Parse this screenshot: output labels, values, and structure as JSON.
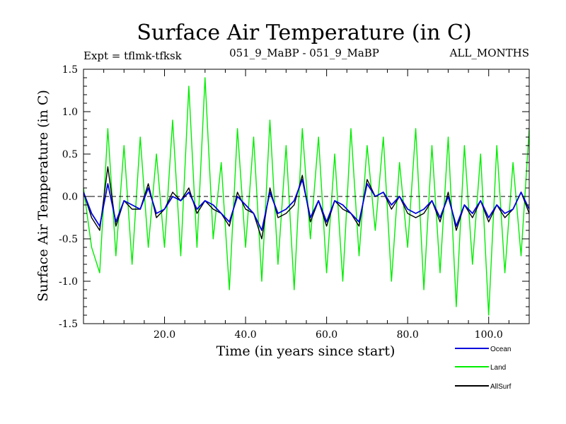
{
  "chart_data": {
    "type": "line",
    "title": "Surface Air Temperature (in C)",
    "subtitle_left": "Expt = tflmk-tfksk",
    "subtitle_center": "051_9_MaBP - 051_9_MaBP",
    "subtitle_right": "ALL_MONTHS",
    "xlabel": "Time (in years since start)",
    "ylabel": "Surface Air Temperature (in C)",
    "xlim": [
      0,
      110
    ],
    "ylim": [
      -1.5,
      1.5
    ],
    "x_ticks": [
      20,
      40,
      60,
      80,
      100
    ],
    "x_tick_labels": [
      "20.0",
      "40.0",
      "60.0",
      "80.0",
      "100.0"
    ],
    "y_ticks": [
      -1.5,
      -1.0,
      -0.5,
      0.0,
      0.5,
      1.0,
      1.5
    ],
    "y_tick_labels": [
      "-1.5",
      "-1.0",
      "-0.5",
      "0.0",
      "0.5",
      "1.0",
      "1.5"
    ],
    "reference_line": {
      "y": 0.0,
      "style": "dashed"
    },
    "series": [
      {
        "name": "Land",
        "color": "#00ee00",
        "x": [
          0,
          2,
          4,
          6,
          8,
          10,
          12,
          14,
          16,
          18,
          20,
          22,
          24,
          26,
          28,
          30,
          32,
          34,
          36,
          38,
          40,
          42,
          44,
          46,
          48,
          50,
          52,
          54,
          56,
          58,
          60,
          62,
          64,
          66,
          68,
          70,
          72,
          74,
          76,
          78,
          80,
          82,
          84,
          86,
          88,
          90,
          92,
          94,
          96,
          98,
          100,
          102,
          104,
          106,
          108,
          110
        ],
        "y": [
          0.1,
          -0.6,
          -0.9,
          0.8,
          -0.7,
          0.6,
          -0.8,
          0.7,
          -0.6,
          0.5,
          -0.6,
          0.9,
          -0.7,
          1.3,
          -0.6,
          1.4,
          -0.5,
          0.4,
          -1.1,
          0.8,
          -0.6,
          0.7,
          -1.0,
          0.9,
          -0.8,
          0.6,
          -1.1,
          0.8,
          -0.5,
          0.7,
          -0.9,
          0.5,
          -1.0,
          0.8,
          -0.7,
          0.6,
          -0.4,
          0.7,
          -1.0,
          0.4,
          -0.6,
          0.8,
          -1.1,
          0.6,
          -0.9,
          0.7,
          -1.3,
          0.6,
          -0.8,
          0.5,
          -1.4,
          0.6,
          -0.9,
          0.4,
          -0.7,
          0.8
        ]
      },
      {
        "name": "Ocean",
        "color": "#0000dd",
        "x": [
          0,
          2,
          4,
          6,
          8,
          10,
          12,
          14,
          16,
          18,
          20,
          22,
          24,
          26,
          28,
          30,
          32,
          34,
          36,
          38,
          40,
          42,
          44,
          46,
          48,
          50,
          52,
          54,
          56,
          58,
          60,
          62,
          64,
          66,
          68,
          70,
          72,
          74,
          76,
          78,
          80,
          82,
          84,
          86,
          88,
          90,
          92,
          94,
          96,
          98,
          100,
          102,
          104,
          106,
          108,
          110
        ],
        "y": [
          0.05,
          -0.2,
          -0.35,
          0.15,
          -0.3,
          -0.05,
          -0.1,
          -0.15,
          0.1,
          -0.2,
          -0.15,
          0.0,
          -0.05,
          0.05,
          -0.15,
          -0.05,
          -0.1,
          -0.2,
          -0.3,
          0.0,
          -0.1,
          -0.2,
          -0.4,
          0.05,
          -0.2,
          -0.15,
          -0.05,
          0.2,
          -0.25,
          -0.05,
          -0.3,
          -0.05,
          -0.1,
          -0.2,
          -0.3,
          0.15,
          0.0,
          0.05,
          -0.1,
          0.0,
          -0.15,
          -0.2,
          -0.15,
          -0.05,
          -0.25,
          0.0,
          -0.35,
          -0.1,
          -0.2,
          -0.05,
          -0.25,
          -0.1,
          -0.2,
          -0.15,
          0.05,
          -0.15
        ]
      },
      {
        "name": "AllSurf",
        "color": "#000000",
        "x": [
          0,
          2,
          4,
          6,
          8,
          10,
          12,
          14,
          16,
          18,
          20,
          22,
          24,
          26,
          28,
          30,
          32,
          34,
          36,
          38,
          40,
          42,
          44,
          46,
          48,
          50,
          52,
          54,
          56,
          58,
          60,
          62,
          64,
          66,
          68,
          70,
          72,
          74,
          76,
          78,
          80,
          82,
          84,
          86,
          88,
          90,
          92,
          94,
          96,
          98,
          100,
          102,
          104,
          106,
          108,
          110
        ],
        "y": [
          0.05,
          -0.25,
          -0.4,
          0.35,
          -0.35,
          -0.05,
          -0.15,
          -0.15,
          0.15,
          -0.25,
          -0.15,
          0.05,
          -0.05,
          0.1,
          -0.2,
          -0.05,
          -0.15,
          -0.2,
          -0.35,
          0.05,
          -0.15,
          -0.2,
          -0.5,
          0.1,
          -0.25,
          -0.2,
          -0.1,
          0.25,
          -0.3,
          -0.05,
          -0.35,
          -0.05,
          -0.15,
          -0.2,
          -0.35,
          0.2,
          0.0,
          0.05,
          -0.15,
          0.0,
          -0.2,
          -0.25,
          -0.2,
          -0.05,
          -0.3,
          0.05,
          -0.4,
          -0.1,
          -0.25,
          -0.05,
          -0.3,
          -0.1,
          -0.25,
          -0.15,
          0.05,
          -0.2
        ]
      }
    ],
    "legend": {
      "placement": "bottom-right",
      "entries": [
        {
          "name": "Ocean",
          "color": "#0000dd"
        },
        {
          "name": "Land",
          "color": "#00ee00"
        },
        {
          "name": "AllSurf",
          "color": "#000000"
        }
      ]
    }
  }
}
